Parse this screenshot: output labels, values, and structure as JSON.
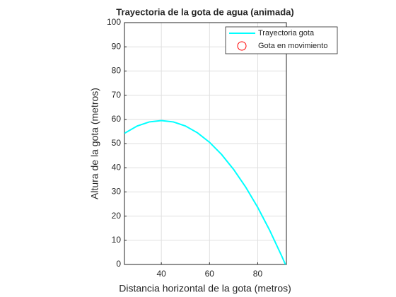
{
  "chart_data": {
    "type": "line",
    "title": "Trayectoria de la gota de agua (animada)",
    "xlabel": "Distancia horizontal de la gota (metros)",
    "ylabel": "Altura de la gota (metros)",
    "x": [
      24.7,
      30,
      35,
      40,
      45,
      50,
      55,
      60,
      65,
      70,
      75,
      80,
      85,
      90,
      91.5
    ],
    "series": [
      {
        "name": "Trayectoria gota",
        "color": "#00ffff",
        "values": [
          54.25,
          57.26,
          58.94,
          59.5,
          58.94,
          57.26,
          54.45,
          50.52,
          45.48,
          39.3,
          32.01,
          23.6,
          14.06,
          3.4,
          0
        ]
      },
      {
        "name": "Gota en movimiento",
        "color": "#ff0000",
        "marker": "circle"
      }
    ],
    "xlim": [
      24.7,
      91.9
    ],
    "ylim": [
      0,
      100
    ],
    "xticks": [
      40,
      60,
      80
    ],
    "yticks": [
      0,
      10,
      20,
      30,
      40,
      50,
      60,
      70,
      80,
      90,
      100
    ],
    "grid": true,
    "legend": "northeast"
  }
}
